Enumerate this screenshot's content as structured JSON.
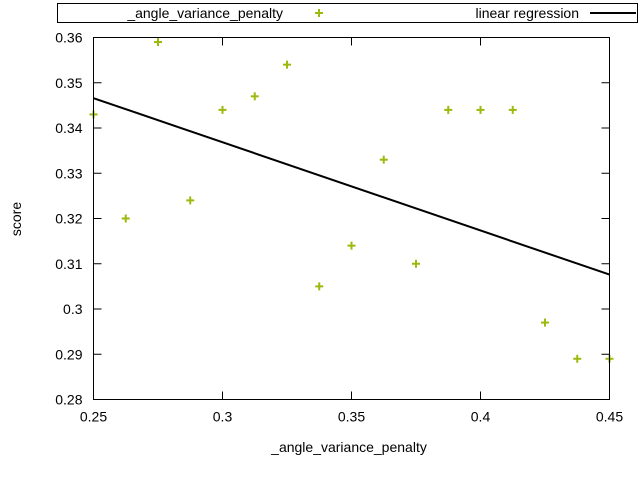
{
  "chart_data": {
    "type": "scatter",
    "title": "",
    "xlabel": "_angle_variance_penalty",
    "ylabel": "score",
    "xlim": [
      0.25,
      0.45
    ],
    "ylim": [
      0.28,
      0.36
    ],
    "xticks": [
      "0.25",
      "0.3",
      "0.35",
      "0.4",
      "0.45"
    ],
    "yticks": [
      "0.28",
      "0.29",
      "0.3",
      "0.31",
      "0.32",
      "0.33",
      "0.34",
      "0.35",
      "0.36"
    ],
    "grid": false,
    "legend_position": "top",
    "series": [
      {
        "name": "_angle_variance_penalty",
        "kind": "points",
        "marker": "plus",
        "color": "#9aba0c",
        "x": [
          0.25,
          0.2625,
          0.275,
          0.2875,
          0.3,
          0.3125,
          0.325,
          0.3375,
          0.35,
          0.3625,
          0.375,
          0.3875,
          0.4,
          0.4125,
          0.425,
          0.4375,
          0.45
        ],
        "y": [
          0.343,
          0.32,
          0.359,
          0.324,
          0.344,
          0.347,
          0.354,
          0.305,
          0.314,
          0.333,
          0.31,
          0.344,
          0.344,
          0.344,
          0.297,
          0.289,
          0.289
        ]
      },
      {
        "name": "linear regression",
        "kind": "line",
        "color": "#000000",
        "x": [
          0.25,
          0.45
        ],
        "y": [
          0.3466,
          0.3076
        ]
      }
    ]
  }
}
